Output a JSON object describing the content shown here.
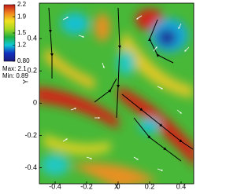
{
  "chart_data": {
    "type": "heatmap",
    "xlabel": "X",
    "ylabel": "Y",
    "xlim": [
      -0.5,
      0.48
    ],
    "ylim": [
      -0.5,
      0.62
    ],
    "xticks": [
      -0.4,
      -0.2,
      0.0,
      0.2,
      0.4
    ],
    "yticks": [
      -0.4,
      -0.2,
      0.0,
      0.2,
      0.4
    ],
    "colorbar": {
      "lim": [
        0.8,
        2.2
      ],
      "ticks": [
        2.2,
        1.9,
        1.5,
        1.2,
        {
          "value": 0.8,
          "label": "0.80"
        }
      ],
      "colors": [
        "#1a1a7a",
        "#1030c0",
        "#10c8d8",
        "#20b040",
        "#a8d820",
        "#f0e020",
        "#f08020",
        "#c01818"
      ]
    },
    "annotations": [
      "Max: 2.1",
      "Min: 0.89"
    ]
  }
}
